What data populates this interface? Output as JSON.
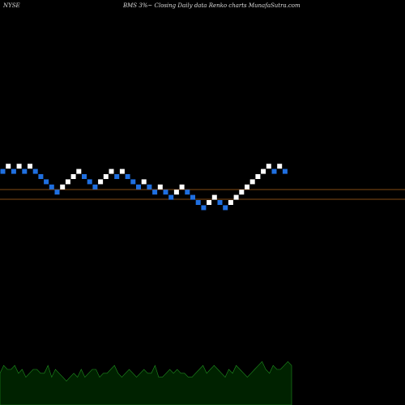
{
  "header": {
    "exchange": "NYSE",
    "title": "BMS 3%~  Closing Daily data  Renko  charts MunafaSutra.com"
  },
  "chart_data": {
    "type": "renko",
    "brick_direction_values": [
      {
        "level": 1,
        "dir": "down"
      },
      {
        "level": 2,
        "dir": "up"
      },
      {
        "level": 1,
        "dir": "down"
      },
      {
        "level": 2,
        "dir": "up"
      },
      {
        "level": 1,
        "dir": "down"
      },
      {
        "level": 2,
        "dir": "up"
      },
      {
        "level": 1,
        "dir": "down"
      },
      {
        "level": 0,
        "dir": "down"
      },
      {
        "level": -1,
        "dir": "down"
      },
      {
        "level": -2,
        "dir": "down"
      },
      {
        "level": -3,
        "dir": "down"
      },
      {
        "level": -2,
        "dir": "up"
      },
      {
        "level": -1,
        "dir": "up"
      },
      {
        "level": 0,
        "dir": "up"
      },
      {
        "level": 1,
        "dir": "up"
      },
      {
        "level": 0,
        "dir": "down"
      },
      {
        "level": -1,
        "dir": "down"
      },
      {
        "level": -2,
        "dir": "down"
      },
      {
        "level": -1,
        "dir": "up"
      },
      {
        "level": 0,
        "dir": "up"
      },
      {
        "level": 1,
        "dir": "up"
      },
      {
        "level": 0,
        "dir": "down"
      },
      {
        "level": 1,
        "dir": "up"
      },
      {
        "level": 0,
        "dir": "down"
      },
      {
        "level": -1,
        "dir": "down"
      },
      {
        "level": -2,
        "dir": "down"
      },
      {
        "level": -1,
        "dir": "up"
      },
      {
        "level": -2,
        "dir": "down"
      },
      {
        "level": -3,
        "dir": "down"
      },
      {
        "level": -2,
        "dir": "up"
      },
      {
        "level": -3,
        "dir": "down"
      },
      {
        "level": -4,
        "dir": "down"
      },
      {
        "level": -3,
        "dir": "up"
      },
      {
        "level": -2,
        "dir": "up"
      },
      {
        "level": -3,
        "dir": "down"
      },
      {
        "level": -4,
        "dir": "down"
      },
      {
        "level": -5,
        "dir": "down"
      },
      {
        "level": -6,
        "dir": "down"
      },
      {
        "level": -5,
        "dir": "up"
      },
      {
        "level": -4,
        "dir": "up"
      },
      {
        "level": -5,
        "dir": "down"
      },
      {
        "level": -6,
        "dir": "down"
      },
      {
        "level": -5,
        "dir": "up"
      },
      {
        "level": -4,
        "dir": "up"
      },
      {
        "level": -3,
        "dir": "up"
      },
      {
        "level": -2,
        "dir": "up"
      },
      {
        "level": -1,
        "dir": "up"
      },
      {
        "level": 0,
        "dir": "up"
      },
      {
        "level": 1,
        "dir": "up"
      },
      {
        "level": 2,
        "dir": "up"
      },
      {
        "level": 1,
        "dir": "down"
      },
      {
        "level": 2,
        "dir": "up"
      },
      {
        "level": 1,
        "dir": "down"
      }
    ],
    "colors": {
      "up": "#ffffff",
      "down": "#1f6fe0",
      "reference_line": "#b0651c",
      "volume_fill": "#002200",
      "volume_line": "#1f8f1f"
    },
    "volume_levels": [
      4,
      6,
      5,
      5,
      6,
      4,
      5,
      3,
      4,
      5,
      5,
      4,
      4,
      6,
      3,
      5,
      4,
      3,
      2,
      3,
      4,
      3,
      5,
      3,
      4,
      5,
      5,
      3,
      4,
      4,
      5,
      6,
      4,
      3,
      4,
      5,
      4,
      3,
      4,
      5,
      4,
      4,
      6,
      3,
      3,
      4,
      5,
      4,
      5,
      4,
      4,
      3,
      3,
      4,
      5,
      6,
      4,
      5,
      6,
      5,
      4,
      3,
      5,
      4,
      6,
      5,
      4,
      3,
      4,
      5,
      6,
      7,
      5,
      4,
      6,
      5,
      5,
      6,
      7,
      6
    ],
    "grid": false,
    "legend": "none"
  }
}
